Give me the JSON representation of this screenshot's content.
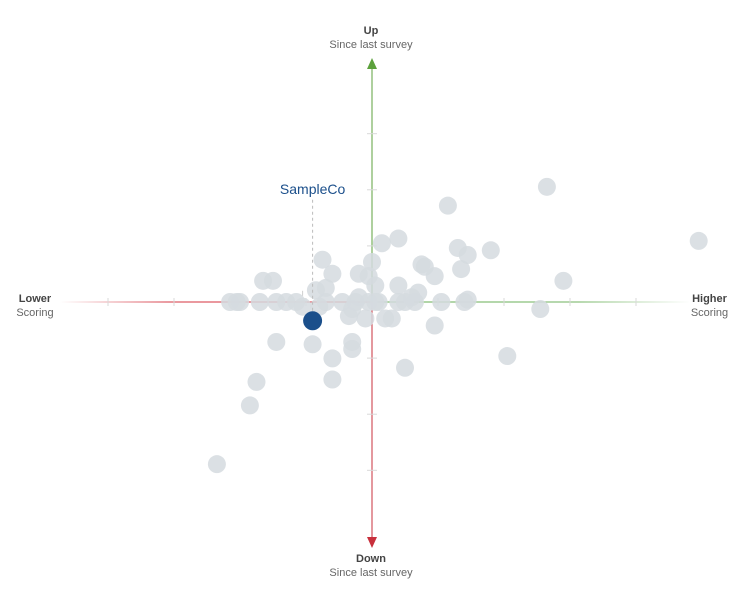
{
  "chart_data": {
    "type": "scatter",
    "axes": {
      "up": {
        "title": "Up",
        "subtitle": "Since last survey"
      },
      "down": {
        "title": "Down",
        "subtitle": "Since last survey"
      },
      "left": {
        "title": "Lower",
        "subtitle": "Scoring"
      },
      "right": {
        "title": "Higher",
        "subtitle": "Scoring"
      }
    },
    "xlim": [
      -1,
      1
    ],
    "ylim": [
      -1,
      1
    ],
    "colors": {
      "up_axis": "#5ca13c",
      "down_axis": "#c8303c",
      "left_axis": "#d8444f",
      "right_axis": "#7ab86a",
      "point": "#d5dadf",
      "highlight": "#1b4f8b"
    },
    "highlight": {
      "label": "SampleCo",
      "x": -0.18,
      "y": -0.08
    },
    "points": [
      {
        "x": 0.53,
        "y": 0.49
      },
      {
        "x": 0.23,
        "y": 0.41
      },
      {
        "x": 0.99,
        "y": 0.26
      },
      {
        "x": 0.08,
        "y": 0.27
      },
      {
        "x": 0.03,
        "y": 0.25
      },
      {
        "x": 0.26,
        "y": 0.23
      },
      {
        "x": 0.36,
        "y": 0.22
      },
      {
        "x": 0.29,
        "y": 0.2
      },
      {
        "x": -0.15,
        "y": 0.18
      },
      {
        "x": 0.0,
        "y": 0.17
      },
      {
        "x": 0.15,
        "y": 0.16
      },
      {
        "x": 0.16,
        "y": 0.15
      },
      {
        "x": 0.27,
        "y": 0.14
      },
      {
        "x": -0.12,
        "y": 0.12
      },
      {
        "x": -0.04,
        "y": 0.12
      },
      {
        "x": -0.01,
        "y": 0.11
      },
      {
        "x": 0.19,
        "y": 0.11
      },
      {
        "x": 0.58,
        "y": 0.09
      },
      {
        "x": -0.33,
        "y": 0.09
      },
      {
        "x": -0.3,
        "y": 0.09
      },
      {
        "x": 0.01,
        "y": 0.07
      },
      {
        "x": -0.14,
        "y": 0.06
      },
      {
        "x": 0.08,
        "y": 0.07
      },
      {
        "x": -0.17,
        "y": 0.05
      },
      {
        "x": 0.14,
        "y": 0.04
      },
      {
        "x": -0.04,
        "y": 0.02
      },
      {
        "x": 0.12,
        "y": 0.02
      },
      {
        "x": 0.29,
        "y": 0.01
      },
      {
        "x": -0.43,
        "y": 0.0
      },
      {
        "x": -0.41,
        "y": 0.0
      },
      {
        "x": -0.4,
        "y": 0.0
      },
      {
        "x": -0.34,
        "y": 0.0
      },
      {
        "x": -0.29,
        "y": 0.0
      },
      {
        "x": -0.26,
        "y": 0.0
      },
      {
        "x": -0.23,
        "y": 0.0
      },
      {
        "x": -0.14,
        "y": 0.0
      },
      {
        "x": -0.09,
        "y": 0.0
      },
      {
        "x": -0.05,
        "y": 0.0
      },
      {
        "x": -0.01,
        "y": 0.0
      },
      {
        "x": 0.01,
        "y": 0.0
      },
      {
        "x": 0.02,
        "y": 0.0
      },
      {
        "x": 0.08,
        "y": 0.0
      },
      {
        "x": 0.1,
        "y": 0.0
      },
      {
        "x": 0.13,
        "y": 0.0
      },
      {
        "x": 0.21,
        "y": 0.0
      },
      {
        "x": 0.28,
        "y": 0.0
      },
      {
        "x": -0.21,
        "y": -0.02
      },
      {
        "x": -0.16,
        "y": -0.02
      },
      {
        "x": -0.06,
        "y": -0.03
      },
      {
        "x": 0.51,
        "y": -0.03
      },
      {
        "x": -0.07,
        "y": -0.06
      },
      {
        "x": -0.02,
        "y": -0.07
      },
      {
        "x": 0.04,
        "y": -0.07
      },
      {
        "x": 0.06,
        "y": -0.07
      },
      {
        "x": 0.19,
        "y": -0.1
      },
      {
        "x": -0.29,
        "y": -0.17
      },
      {
        "x": -0.18,
        "y": -0.18
      },
      {
        "x": -0.06,
        "y": -0.17
      },
      {
        "x": -0.06,
        "y": -0.2
      },
      {
        "x": 0.41,
        "y": -0.23
      },
      {
        "x": -0.12,
        "y": -0.24
      },
      {
        "x": 0.1,
        "y": -0.28
      },
      {
        "x": -0.12,
        "y": -0.33
      },
      {
        "x": -0.35,
        "y": -0.34
      },
      {
        "x": -0.37,
        "y": -0.44
      },
      {
        "x": -0.47,
        "y": -0.69
      }
    ]
  }
}
